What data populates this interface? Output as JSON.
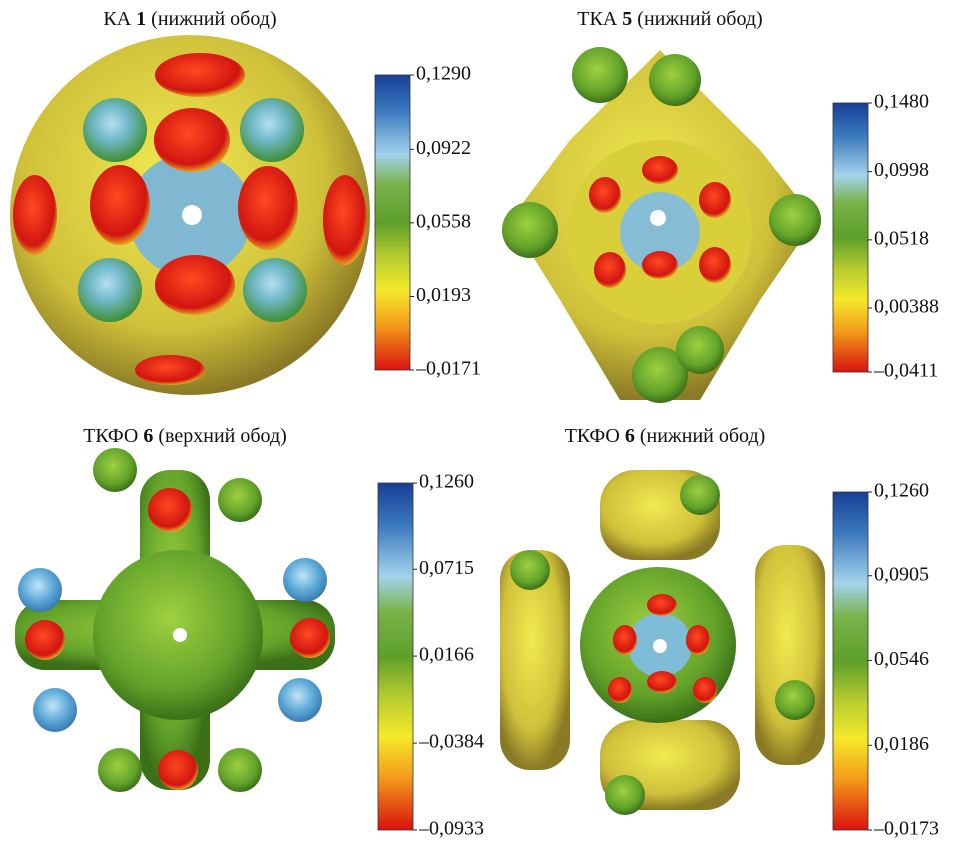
{
  "panels": [
    {
      "title": {
        "prefix": "КА",
        "number": "1",
        "suffix": "(нижний обод)"
      },
      "colorbar": {
        "ticks": [
          {
            "value": 0.129,
            "label": "0,1290"
          },
          {
            "value": 0.0922,
            "label": "0,0922"
          },
          {
            "value": 0.0558,
            "label": "0,0558"
          },
          {
            "value": 0.0193,
            "label": "0,0193"
          },
          {
            "value": -0.0171,
            "label": "–0,0171"
          }
        ]
      }
    },
    {
      "title": {
        "prefix": "ТКА",
        "number": "5",
        "suffix": "(нижний обод)"
      },
      "colorbar": {
        "ticks": [
          {
            "value": 0.148,
            "label": "0,1480"
          },
          {
            "value": 0.0998,
            "label": "0,0998"
          },
          {
            "value": 0.0518,
            "label": "0,0518"
          },
          {
            "value": 0.00388,
            "label": "0,00388"
          },
          {
            "value": -0.0411,
            "label": "–0,0411"
          }
        ]
      }
    },
    {
      "title": {
        "prefix": "ТКФО",
        "number": "6",
        "suffix": "(верхний обод)"
      },
      "colorbar": {
        "ticks": [
          {
            "value": 0.126,
            "label": "0,1260"
          },
          {
            "value": 0.0715,
            "label": "0,0715"
          },
          {
            "value": 0.0166,
            "label": "0,0166"
          },
          {
            "value": -0.0384,
            "label": "–0,0384"
          },
          {
            "value": -0.0933,
            "label": "–0,0933"
          }
        ]
      }
    },
    {
      "title": {
        "prefix": "ТКФО",
        "number": "6",
        "suffix": "(нижний обод)"
      },
      "colorbar": {
        "ticks": [
          {
            "value": 0.126,
            "label": "0,1260"
          },
          {
            "value": 0.0905,
            "label": "0,0905"
          },
          {
            "value": 0.0546,
            "label": "0,0546"
          },
          {
            "value": 0.0186,
            "label": "0,0186"
          },
          {
            "value": -0.0173,
            "label": "–0,0173"
          }
        ]
      }
    }
  ]
}
